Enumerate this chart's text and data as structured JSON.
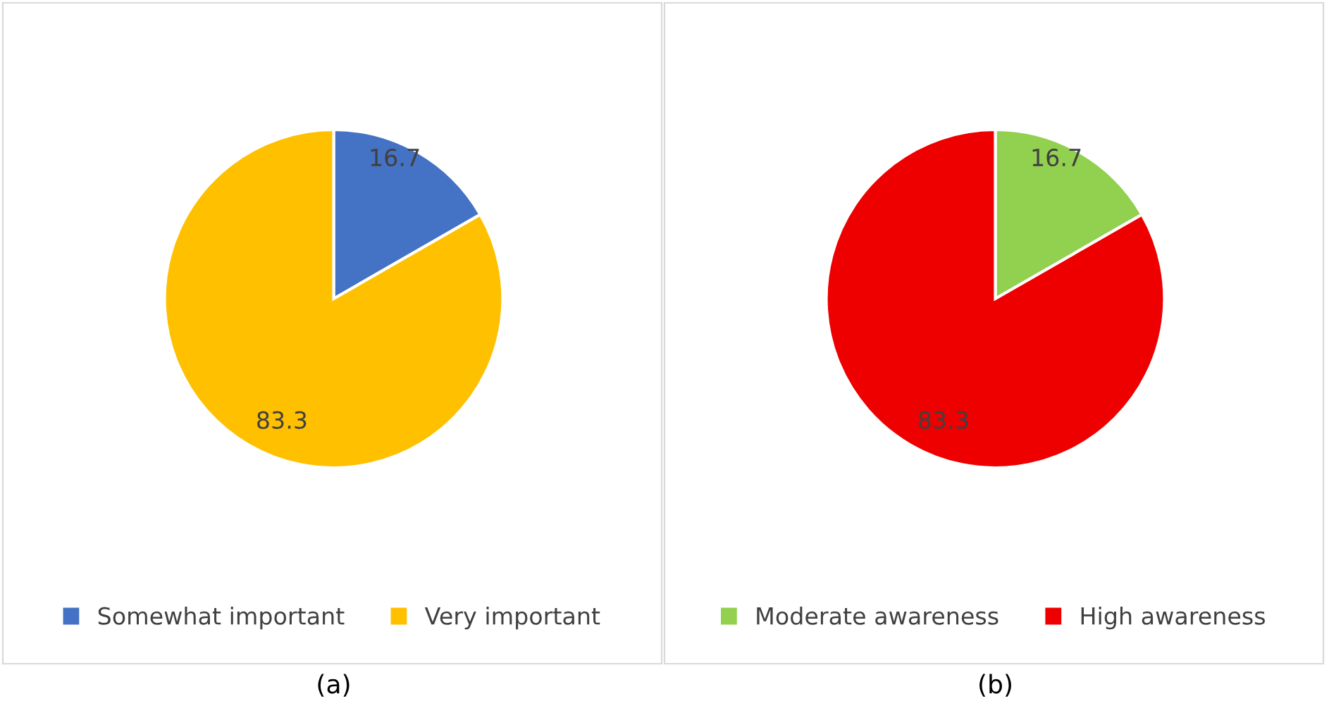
{
  "chart_data": [
    {
      "type": "pie",
      "categories": [
        "Somewhat important",
        "Very important"
      ],
      "values": [
        16.7,
        83.3
      ],
      "colors": [
        "#4472c4",
        "#ffc000"
      ],
      "data_labels": true,
      "legend": "bottom",
      "annotations": [
        "(a)"
      ]
    },
    {
      "type": "pie",
      "categories": [
        "Moderate awareness",
        "High awareness"
      ],
      "values": [
        16.7,
        83.3
      ],
      "colors": [
        "#92d050",
        "#ee0000"
      ],
      "data_labels": true,
      "legend": "bottom",
      "annotations": [
        "(b)"
      ]
    }
  ]
}
